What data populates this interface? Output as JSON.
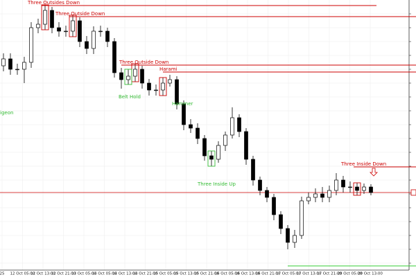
{
  "chart_data": {
    "type": "candlestick",
    "ylim": [
      0,
      390
    ],
    "yticks": [
      10,
      30,
      50,
      70,
      90,
      110,
      130,
      150,
      170,
      190,
      210,
      230,
      250,
      270,
      290,
      310,
      330,
      350,
      370
    ],
    "grid": true,
    "bull_color": "#ffffff",
    "bear_color": "#000000",
    "open": [
      295,
      305,
      290,
      290,
      300,
      350,
      355,
      375,
      350,
      345,
      345,
      360,
      330,
      320,
      345,
      345,
      330,
      285,
      275,
      280,
      290,
      270,
      260,
      260,
      270,
      275,
      240,
      210,
      205,
      190,
      165,
      160,
      180,
      195,
      220,
      200,
      160,
      130,
      115,
      105,
      80,
      60,
      40,
      50,
      100,
      105,
      110,
      105,
      115,
      130,
      120,
      120,
      115,
      120
    ],
    "high": [
      313,
      313,
      298,
      308,
      358,
      363,
      383,
      380,
      358,
      353,
      368,
      365,
      338,
      352,
      353,
      350,
      335,
      292,
      290,
      298,
      295,
      276,
      268,
      278,
      282,
      280,
      245,
      218,
      212,
      195,
      172,
      186,
      200,
      235,
      225,
      205,
      165,
      135,
      120,
      110,
      85,
      65,
      58,
      106,
      112,
      118,
      120,
      122,
      140,
      136,
      128,
      126,
      125,
      124
    ],
    "low": [
      287,
      282,
      282,
      270,
      292,
      342,
      347,
      342,
      337,
      337,
      337,
      322,
      312,
      312,
      337,
      322,
      278,
      262,
      268,
      272,
      262,
      252,
      252,
      252,
      265,
      232,
      202,
      198,
      182,
      158,
      150,
      155,
      172,
      190,
      192,
      152,
      122,
      108,
      98,
      72,
      52,
      30,
      32,
      45,
      95,
      98,
      98,
      98,
      108,
      112,
      112,
      108,
      110,
      108
    ],
    "close": [
      305,
      290,
      290,
      300,
      350,
      355,
      375,
      350,
      345,
      345,
      360,
      330,
      320,
      345,
      345,
      330,
      285,
      275,
      280,
      290,
      270,
      260,
      260,
      270,
      275,
      240,
      210,
      205,
      190,
      165,
      160,
      180,
      195,
      220,
      200,
      160,
      130,
      115,
      105,
      80,
      60,
      40,
      50,
      100,
      105,
      110,
      105,
      115,
      130,
      120,
      120,
      115,
      120,
      112
    ],
    "x_labels": [
      "25",
      "12 Oct 05:00",
      "12 Oct 13:00",
      "12 Oct 21:00",
      "13 Oct 05:00",
      "14 Oct 05:00",
      "14 Oct 13:00",
      "14 Oct 21:00",
      "15 Oct 05:00",
      "15 Oct 13:00",
      "15 Oct 21:00",
      "16 Oct 05:00",
      "16 Oct 13:00",
      "16 Oct 21:00",
      "17 Oct 05:00",
      "17 Oct 13:00",
      "17 Oct 21:00",
      "20 Oct 05:00",
      "20 Oct 13:00"
    ],
    "annotations": [
      {
        "text": "Three Outsides Down",
        "level": 382,
        "color": "#cc0000"
      },
      {
        "text": "Three Outside Down",
        "level": 366,
        "color": "#cc0000"
      },
      {
        "text": "Three Outside Down",
        "level": 296,
        "color": "#cc0000"
      },
      {
        "text": "Harami",
        "level": 286,
        "color": "#cc0000"
      },
      {
        "text": "Three Inside Down",
        "level": 149,
        "color": "#cc0000"
      }
    ],
    "labels": [
      {
        "text": "Belt Hold",
        "color": "#33bb33"
      },
      {
        "text": "Hammer",
        "color": "#33bb33"
      },
      {
        "text": "Three Inside Up",
        "color": "#33bb33"
      },
      {
        "text": "igeon",
        "color": "#33bb33"
      }
    ],
    "price_line": {
      "level": 112,
      "color": "#cc0000"
    },
    "support_line": {
      "level": 6,
      "color": "#33cc33"
    }
  }
}
